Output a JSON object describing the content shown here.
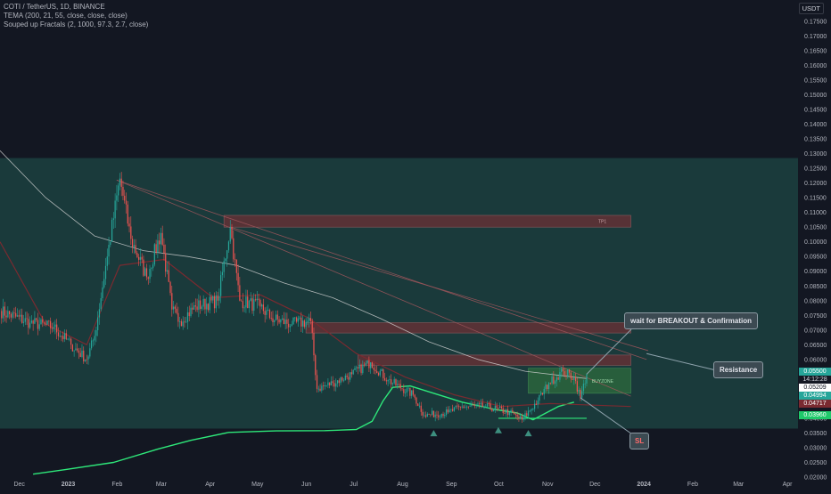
{
  "header": {
    "title": "COTI / TetherUS, 1D, BINANCE",
    "indicator1": "TEMA (200, 21, 55, close, close, close)",
    "indicator2": "Souped up Fractals (2, 1000, 97.3, 2.7, close)",
    "currency": "USDT"
  },
  "colors": {
    "background": "#131722",
    "zone": "#1a3c3d",
    "up": "#26a69a",
    "down": "#ef5350",
    "tema_green": "#2ee87a",
    "ma_white": "#d6d6d6",
    "ma_red": "#7a2a30"
  },
  "annotations": {
    "tp1": "TP1",
    "buyzone": "BUYZONE",
    "wait": "wait for BREAKOUT & Confirmation",
    "resistance": "Resistance",
    "sl": "SL"
  },
  "price_tags": {
    "last": "0.05500",
    "countdown": "14:12:28",
    "t1": "0.05209",
    "t2": "0.04994",
    "t3": "0.04717",
    "t4": "0.03960"
  },
  "chart_data": {
    "type": "candlestick",
    "title": "COTI / TetherUS, 1D, BINANCE",
    "y_axis_ticks": [
      "0.17500",
      "0.17000",
      "0.16500",
      "0.16000",
      "0.15500",
      "0.15000",
      "0.14500",
      "0.14000",
      "0.13500",
      "0.13000",
      "0.12500",
      "0.12000",
      "0.11500",
      "0.11000",
      "0.10500",
      "0.10000",
      "0.09500",
      "0.09000",
      "0.08500",
      "0.08000",
      "0.07500",
      "0.07000",
      "0.06500",
      "0.06000",
      "0.05500",
      "0.05000",
      "0.04500",
      "0.04000",
      "0.03500",
      "0.03000",
      "0.02500",
      "0.02000"
    ],
    "ylim": [
      0.02,
      0.178
    ],
    "x_axis_labels": [
      "Dec",
      "2023",
      "Feb",
      "Mar",
      "Apr",
      "May",
      "Jun",
      "Jul",
      "Aug",
      "Sep",
      "Oct",
      "Nov",
      "Dec",
      "2024",
      "Feb",
      "Mar",
      "Apr"
    ],
    "date_range": [
      "2022-11-21",
      "2024-04-10"
    ],
    "last_data_date": "2023-11-28",
    "price_anchors": [
      [
        "2022-11-21",
        0.0765
      ],
      [
        "2022-12-10",
        0.0725
      ],
      [
        "2022-12-25",
        0.071
      ],
      [
        "2023-01-05",
        0.065
      ],
      [
        "2023-01-15",
        0.06
      ],
      [
        "2023-01-20",
        0.068
      ],
      [
        "2023-01-28",
        0.095
      ],
      [
        "2023-02-05",
        0.1215
      ],
      [
        "2023-02-12",
        0.101
      ],
      [
        "2023-02-22",
        0.088
      ],
      [
        "2023-03-03",
        0.103
      ],
      [
        "2023-03-10",
        0.077
      ],
      [
        "2023-03-15",
        0.073
      ],
      [
        "2023-03-25",
        0.078
      ],
      [
        "2023-04-08",
        0.08
      ],
      [
        "2023-04-16",
        0.105
      ],
      [
        "2023-04-22",
        0.08
      ],
      [
        "2023-05-05",
        0.078
      ],
      [
        "2023-05-12",
        0.074
      ],
      [
        "2023-05-25",
        0.072
      ],
      [
        "2023-06-06",
        0.073
      ],
      [
        "2023-06-10",
        0.05
      ],
      [
        "2023-06-20",
        0.052
      ],
      [
        "2023-07-02",
        0.055
      ],
      [
        "2023-07-14",
        0.059
      ],
      [
        "2023-07-25",
        0.053
      ],
      [
        "2023-08-10",
        0.048
      ],
      [
        "2023-08-17",
        0.041
      ],
      [
        "2023-09-01",
        0.042
      ],
      [
        "2023-09-10",
        0.044
      ],
      [
        "2023-09-25",
        0.044
      ],
      [
        "2023-10-10",
        0.042
      ],
      [
        "2023-10-18",
        0.0395
      ],
      [
        "2023-10-28",
        0.046
      ],
      [
        "2023-11-04",
        0.052
      ],
      [
        "2023-11-13",
        0.056
      ],
      [
        "2023-11-20",
        0.054
      ],
      [
        "2023-11-24",
        0.047
      ],
      [
        "2023-11-28",
        0.055
      ]
    ],
    "zones": [
      {
        "name": "main-range",
        "price_top": 0.1285,
        "price_bottom": 0.0365,
        "date_start": "2022-11-21",
        "date_end": "2024-04-10"
      },
      {
        "name": "tp1",
        "price_top": 0.109,
        "price_bottom": 0.105,
        "date_start": "2023-04-12",
        "date_end": "2023-12-26"
      },
      {
        "name": "resistance-1",
        "price_top": 0.0725,
        "price_bottom": 0.069,
        "date_start": "2023-06-03",
        "date_end": "2023-12-26"
      },
      {
        "name": "resistance-2",
        "price_top": 0.0615,
        "price_bottom": 0.058,
        "date_start": "2023-07-06",
        "date_end": "2023-12-26"
      },
      {
        "name": "buyzone",
        "price_top": 0.057,
        "price_bottom": 0.0485,
        "date_start": "2023-10-22",
        "date_end": "2023-12-26"
      }
    ],
    "trendlines": [
      {
        "from": [
          "2023-02-03",
          0.121
        ],
        "to": [
          "2023-12-26",
          0.0475
        ]
      },
      {
        "from": [
          "2023-02-03",
          0.121
        ],
        "to": [
          "2024-01-05",
          0.06
        ]
      },
      {
        "from": [
          "2023-04-16",
          0.105
        ],
        "to": [
          "2024-01-06",
          0.063
        ]
      },
      {
        "from": [
          "2023-10-03",
          0.04
        ],
        "to": [
          "2023-11-28",
          0.04
        ]
      }
    ],
    "fractal_markers": [
      [
        "2023-08-23",
        0.0345
      ],
      [
        "2023-10-03",
        0.0355
      ],
      [
        "2023-10-22",
        0.0345
      ]
    ],
    "series": [
      {
        "name": "TEMA",
        "points": [
          [
            "2022-12-12",
            0.021
          ],
          [
            "2023-01-01",
            0.0225
          ],
          [
            "2023-02-01",
            0.025
          ],
          [
            "2023-03-01",
            0.0295
          ],
          [
            "2023-03-22",
            0.0325
          ],
          [
            "2023-04-15",
            0.0352
          ],
          [
            "2023-05-15",
            0.0357
          ],
          [
            "2023-06-15",
            0.0358
          ],
          [
            "2023-07-05",
            0.0362
          ],
          [
            "2023-07-15",
            0.039
          ],
          [
            "2023-07-22",
            0.046
          ],
          [
            "2023-07-28",
            0.0505
          ],
          [
            "2023-08-08",
            0.051
          ],
          [
            "2023-08-20",
            0.049
          ],
          [
            "2023-09-10",
            0.0455
          ],
          [
            "2023-10-01",
            0.043
          ],
          [
            "2023-10-15",
            0.0418
          ],
          [
            "2023-10-25",
            0.0395
          ],
          [
            "2023-11-10",
            0.044
          ],
          [
            "2023-11-20",
            0.0455
          ]
        ]
      },
      {
        "name": "MA slow",
        "points": [
          [
            "2022-11-21",
            0.131
          ],
          [
            "2022-12-20",
            0.115
          ],
          [
            "2023-01-20",
            0.102
          ],
          [
            "2023-02-20",
            0.097
          ],
          [
            "2023-03-20",
            0.095
          ],
          [
            "2023-04-20",
            0.092
          ],
          [
            "2023-05-20",
            0.086
          ],
          [
            "2023-06-20",
            0.081
          ],
          [
            "2023-07-20",
            0.074
          ],
          [
            "2023-08-20",
            0.066
          ],
          [
            "2023-09-20",
            0.06
          ],
          [
            "2023-10-20",
            0.056
          ],
          [
            "2023-11-28",
            0.0535
          ]
        ]
      },
      {
        "name": "MA mid",
        "points": [
          [
            "2022-11-21",
            0.1
          ],
          [
            "2022-12-20",
            0.072
          ],
          [
            "2023-01-15",
            0.065
          ],
          [
            "2023-02-05",
            0.092
          ],
          [
            "2023-03-05",
            0.094
          ],
          [
            "2023-04-05",
            0.081
          ],
          [
            "2023-05-05",
            0.082
          ],
          [
            "2023-06-05",
            0.074
          ],
          [
            "2023-07-05",
            0.062
          ],
          [
            "2023-08-05",
            0.054
          ],
          [
            "2023-09-05",
            0.048
          ],
          [
            "2023-10-05",
            0.044
          ],
          [
            "2023-11-05",
            0.045
          ],
          [
            "2023-12-26",
            0.044
          ]
        ]
      }
    ]
  }
}
